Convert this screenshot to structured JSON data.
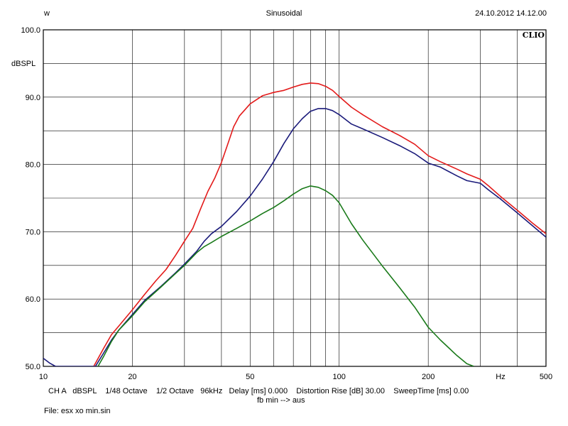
{
  "header": {
    "left": "w",
    "center": "Sinusoidal",
    "right": "24.10.2012 14.12.00",
    "brand": "CLIO"
  },
  "footer": {
    "settings": "CH A   dBSPL    1/48 Octave    1/2 Octave   96kHz   Delay [ms] 0.000    Distortion Rise [dB] 30.00    SweepTime [ms] 0.00",
    "note": "fb min --> aus",
    "file": "File: esx xo min.sin"
  },
  "chart_data": {
    "type": "line",
    "title": "Sinusoidal",
    "xlabel": "Hz",
    "ylabel": "dBSPL",
    "xscale": "log",
    "xlim": [
      10,
      500
    ],
    "ylim": [
      50,
      100
    ],
    "grid": true,
    "x_tick_labels": [
      {
        "x": 10,
        "label": "10"
      },
      {
        "x": 20,
        "label": "20"
      },
      {
        "x": 50,
        "label": "50"
      },
      {
        "x": 100,
        "label": "100"
      },
      {
        "x": 200,
        "label": "200"
      },
      {
        "x": 500,
        "label": "500"
      }
    ],
    "y_tick_labels": [
      {
        "y": 100,
        "label": "100.0"
      },
      {
        "y": 90,
        "label": "90.0"
      },
      {
        "y": 80,
        "label": "80.0"
      },
      {
        "y": 70,
        "label": "70.0"
      },
      {
        "y": 60,
        "label": "60.0"
      },
      {
        "y": 50,
        "label": "50.0"
      }
    ],
    "series": [
      {
        "color": "#e31a1a",
        "points": [
          [
            14.8,
            50
          ],
          [
            16,
            52.7
          ],
          [
            17,
            54.7
          ],
          [
            18,
            56
          ],
          [
            20,
            58.4
          ],
          [
            22,
            60.7
          ],
          [
            24,
            62.7
          ],
          [
            26,
            64.4
          ],
          [
            28,
            66.5
          ],
          [
            30,
            68.6
          ],
          [
            32,
            70.5
          ],
          [
            34,
            73.4
          ],
          [
            36,
            76
          ],
          [
            38,
            78
          ],
          [
            40,
            80.3
          ],
          [
            42,
            83
          ],
          [
            44,
            85.6
          ],
          [
            46,
            87.2
          ],
          [
            50,
            89
          ],
          [
            55,
            90.2
          ],
          [
            60,
            90.7
          ],
          [
            65,
            91
          ],
          [
            70,
            91.5
          ],
          [
            75,
            91.9
          ],
          [
            80,
            92.1
          ],
          [
            85,
            92
          ],
          [
            90,
            91.6
          ],
          [
            95,
            91
          ],
          [
            100,
            90.1
          ],
          [
            110,
            88.5
          ],
          [
            120,
            87.4
          ],
          [
            140,
            85.6
          ],
          [
            160,
            84.3
          ],
          [
            180,
            83
          ],
          [
            200,
            81.3
          ],
          [
            220,
            80.4
          ],
          [
            250,
            79.3
          ],
          [
            270,
            78.6
          ],
          [
            300,
            77.8
          ],
          [
            320,
            76.8
          ],
          [
            350,
            75.3
          ],
          [
            400,
            73.2
          ],
          [
            450,
            71.3
          ],
          [
            500,
            69.7
          ]
        ]
      },
      {
        "color": "#1a1a7a",
        "points": [
          [
            10,
            51.2
          ],
          [
            10.5,
            50.5
          ],
          [
            11,
            50
          ],
          [
            15,
            50
          ],
          [
            16,
            52
          ],
          [
            17,
            53.9
          ],
          [
            18,
            55.4
          ],
          [
            20,
            57.7
          ],
          [
            22,
            59.8
          ],
          [
            25,
            61.9
          ],
          [
            28,
            63.9
          ],
          [
            30,
            65.2
          ],
          [
            33,
            67.1
          ],
          [
            35,
            68.6
          ],
          [
            37,
            69.7
          ],
          [
            40,
            70.8
          ],
          [
            45,
            73
          ],
          [
            50,
            75.3
          ],
          [
            55,
            77.8
          ],
          [
            60,
            80.4
          ],
          [
            65,
            83.1
          ],
          [
            70,
            85.3
          ],
          [
            75,
            86.8
          ],
          [
            80,
            87.9
          ],
          [
            85,
            88.3
          ],
          [
            90,
            88.3
          ],
          [
            95,
            88
          ],
          [
            100,
            87.4
          ],
          [
            110,
            86
          ],
          [
            120,
            85.3
          ],
          [
            140,
            84
          ],
          [
            160,
            82.8
          ],
          [
            180,
            81.6
          ],
          [
            200,
            80.2
          ],
          [
            220,
            79.6
          ],
          [
            250,
            78.3
          ],
          [
            270,
            77.6
          ],
          [
            300,
            77.2
          ],
          [
            320,
            76.2
          ],
          [
            350,
            74.9
          ],
          [
            400,
            72.8
          ],
          [
            450,
            70.9
          ],
          [
            500,
            69.2
          ]
        ]
      },
      {
        "color": "#1a7a1a",
        "points": [
          [
            15.3,
            50
          ],
          [
            16,
            51.5
          ],
          [
            17,
            53.7
          ],
          [
            18,
            55.4
          ],
          [
            20,
            57.5
          ],
          [
            22,
            59.6
          ],
          [
            25,
            61.8
          ],
          [
            28,
            63.8
          ],
          [
            30,
            65
          ],
          [
            33,
            66.9
          ],
          [
            35,
            67.8
          ],
          [
            37,
            68.4
          ],
          [
            40,
            69.3
          ],
          [
            45,
            70.5
          ],
          [
            50,
            71.6
          ],
          [
            55,
            72.7
          ],
          [
            60,
            73.6
          ],
          [
            65,
            74.6
          ],
          [
            70,
            75.6
          ],
          [
            75,
            76.4
          ],
          [
            80,
            76.8
          ],
          [
            85,
            76.6
          ],
          [
            90,
            76.1
          ],
          [
            95,
            75.4
          ],
          [
            100,
            74.3
          ],
          [
            110,
            71.2
          ],
          [
            120,
            68.8
          ],
          [
            140,
            64.9
          ],
          [
            160,
            61.7
          ],
          [
            180,
            58.8
          ],
          [
            200,
            55.8
          ],
          [
            220,
            53.9
          ],
          [
            250,
            51.6
          ],
          [
            270,
            50.4
          ],
          [
            285,
            50
          ]
        ]
      }
    ]
  }
}
